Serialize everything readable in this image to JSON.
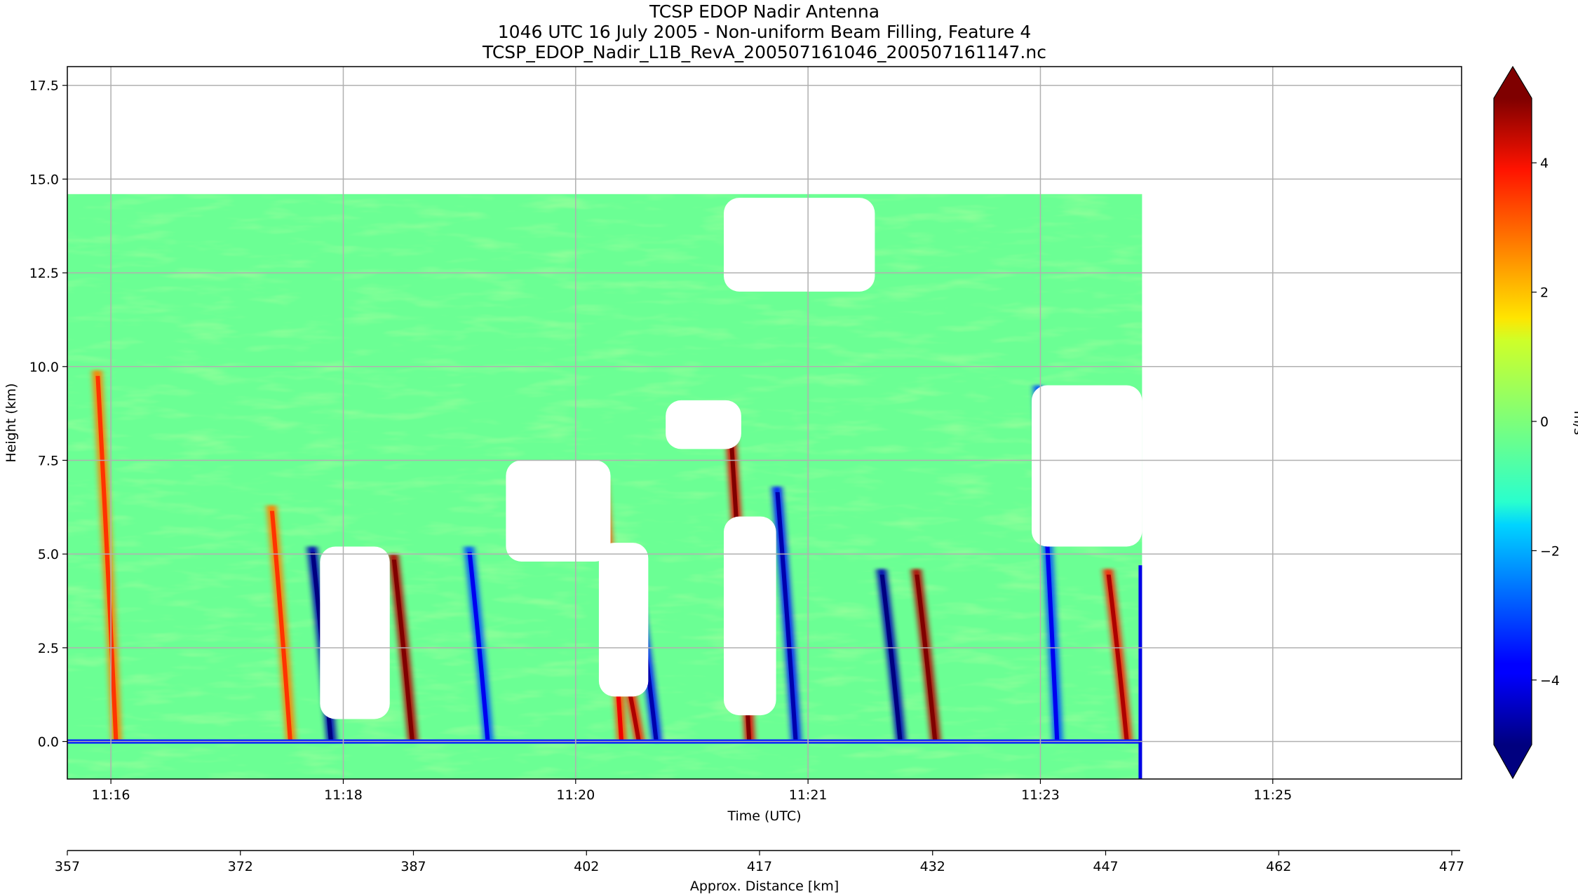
{
  "chart_data": {
    "type": "heatmap",
    "title_lines": [
      "TCSP EDOP Nadir Antenna",
      "1046 UTC 16 July 2005 - Non-uniform Beam Filling, Feature 4",
      "TCSP_EDOP_Nadir_L1B_RevA_200507161046_200507161147.nc"
    ],
    "xlabel": "Time (UTC)",
    "ylabel": "Height (km)",
    "x_tick_labels": [
      "11:16",
      "11:18",
      "11:20",
      "11:21",
      "11:23",
      "11:25"
    ],
    "x_tick_units": [
      0.75,
      4.75,
      8.75,
      12.75,
      16.75,
      20.75
    ],
    "xlim_units": [
      0,
      24
    ],
    "y_ticks": [
      0.0,
      2.5,
      5.0,
      7.5,
      10.0,
      12.5,
      15.0,
      17.5
    ],
    "y_tick_labels": [
      "0.0",
      "2.5",
      "5.0",
      "7.5",
      "10.0",
      "12.5",
      "15.0",
      "17.5"
    ],
    "ylim": [
      -1.0,
      18.0
    ],
    "grid": true,
    "secondary_axis": {
      "label": "Approx. Distance [km]",
      "ticks": [
        357,
        372,
        387,
        402,
        417,
        432,
        447,
        462,
        477
      ],
      "tick_labels": [
        "357",
        "372",
        "387",
        "402",
        "417",
        "432",
        "447",
        "462",
        "477"
      ],
      "range": [
        357,
        477
      ]
    },
    "colorbar": {
      "label": "m/s",
      "colormap": "jet",
      "vmin": -5,
      "vmax": 5,
      "ticks": [
        -4,
        -2,
        0,
        2,
        4
      ],
      "tick_labels": [
        "−4",
        "−2",
        "0",
        "2",
        "4"
      ],
      "extend": "both"
    },
    "data_extent_units": 18.5,
    "surface_height_km": 0.0,
    "echo_top_km": 14.6,
    "features": [
      {
        "kind": "updraft",
        "x": 5.6,
        "top": 5.0,
        "strength": 4.5
      },
      {
        "kind": "updraft",
        "x": 9.5,
        "top": 2.6,
        "strength": 3.5
      },
      {
        "kind": "updraft",
        "x": 9.2,
        "top": 7.0,
        "strength": 3.0
      },
      {
        "kind": "updraft",
        "x": 11.4,
        "top": 8.3,
        "strength": 4.0
      },
      {
        "kind": "updraft",
        "x": 14.6,
        "top": 4.6,
        "strength": 4.5
      },
      {
        "kind": "updraft",
        "x": 17.9,
        "top": 4.6,
        "strength": 3.5
      },
      {
        "kind": "updraft",
        "x": 3.5,
        "top": 6.3,
        "strength": 2.5
      },
      {
        "kind": "updraft",
        "x": 0.5,
        "top": 9.9,
        "strength": 2.5
      },
      {
        "kind": "downdraft",
        "x": 4.2,
        "top": 5.2,
        "strength": -4.5
      },
      {
        "kind": "downdraft",
        "x": 6.9,
        "top": 5.2,
        "strength": -3.0
      },
      {
        "kind": "downdraft",
        "x": 9.8,
        "top": 4.0,
        "strength": -3.5
      },
      {
        "kind": "downdraft",
        "x": 12.2,
        "top": 6.8,
        "strength": -3.5
      },
      {
        "kind": "downdraft",
        "x": 14.0,
        "top": 4.6,
        "strength": -4.5
      },
      {
        "kind": "downdraft",
        "x": 16.7,
        "top": 9.5,
        "strength": -3.0
      }
    ],
    "echo_free_regions": [
      {
        "x0": 4.35,
        "x1": 5.55,
        "y0": 0.6,
        "y1": 5.2
      },
      {
        "x0": 7.55,
        "x1": 9.35,
        "y0": 4.8,
        "y1": 7.5
      },
      {
        "x0": 9.15,
        "x1": 10.0,
        "y0": 1.2,
        "y1": 5.3
      },
      {
        "x0": 10.3,
        "x1": 11.6,
        "y0": 7.8,
        "y1": 9.1
      },
      {
        "x0": 11.3,
        "x1": 12.2,
        "y0": 0.7,
        "y1": 6.0
      },
      {
        "x0": 11.3,
        "x1": 13.9,
        "y0": 12.0,
        "y1": 14.5
      },
      {
        "x0": 16.6,
        "x1": 18.5,
        "y0": 5.2,
        "y1": 9.5
      }
    ]
  }
}
